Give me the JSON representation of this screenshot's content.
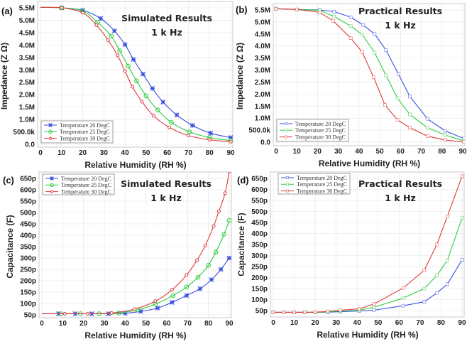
{
  "colors": {
    "t20": "#3a4fe0",
    "t25": "#2ecc40",
    "t30": "#e03a3a",
    "grid": "#e4e4e4"
  },
  "chart_data": [
    {
      "id": "a",
      "type": "line",
      "panel_label": "(a)",
      "annotation": [
        "Simulated Results",
        "1 k Hz"
      ],
      "xlabel": "Relative Humidity (RH %)",
      "ylabel": "Impedance (Z Ω)",
      "xlim": [
        0,
        90
      ],
      "ylim": [
        0,
        5.5
      ],
      "grid": true,
      "legend": "bottom-left",
      "style": "simulated",
      "xticks": [
        0,
        10,
        20,
        30,
        40,
        50,
        60,
        70,
        80,
        90
      ],
      "xtick_labels": [
        "0",
        "10",
        "20",
        "30",
        "40",
        "50",
        "60",
        "70",
        "80",
        "90"
      ],
      "yticks": [
        0,
        0.5,
        1,
        1.5,
        2,
        2.5,
        3,
        3.5,
        4,
        4.5,
        5,
        5.5
      ],
      "ytick_labels": [
        "0.0",
        "500.0k",
        "1.0M",
        "1.5M",
        "2.0M",
        "2.5M",
        "3.0M",
        "3.5M",
        "4.0M",
        "4.5M",
        "5.0M",
        "5.5M"
      ],
      "series": [
        {
          "name": "Temperature 20 DegC",
          "color_key": "t20",
          "marker": "star",
          "x": [
            0,
            10,
            20,
            28.5,
            35,
            40,
            44,
            48.5,
            53,
            58,
            64.5,
            72,
            80.5,
            90
          ],
          "y": [
            5.52,
            5.5,
            5.4,
            5.07,
            4.57,
            4.02,
            3.42,
            2.83,
            2.25,
            1.7,
            1.18,
            0.76,
            0.45,
            0.27
          ]
        },
        {
          "name": "Temperature 25 DegC",
          "color_key": "t25",
          "marker": "circle",
          "x": [
            0,
            10,
            20,
            27,
            33.5,
            37.5,
            41.5,
            45.5,
            50,
            55.5,
            62,
            70.5,
            80,
            90
          ],
          "y": [
            5.52,
            5.5,
            5.37,
            4.92,
            4.36,
            3.77,
            3.15,
            2.55,
            1.95,
            1.38,
            0.88,
            0.5,
            0.27,
            0.15
          ]
        },
        {
          "name": "Temperature 30 DegC",
          "color_key": "t30",
          "marker": "dot",
          "x": [
            0,
            10,
            20,
            26.5,
            32,
            36.5,
            40,
            43.5,
            48,
            53.5,
            61,
            70,
            80,
            90
          ],
          "y": [
            5.52,
            5.5,
            5.3,
            4.8,
            4.2,
            3.58,
            2.95,
            2.32,
            1.72,
            1.15,
            0.68,
            0.35,
            0.18,
            0.1
          ]
        }
      ]
    },
    {
      "id": "b",
      "type": "line",
      "panel_label": "(b)",
      "annotation": [
        "Practical Results",
        "1 k Hz"
      ],
      "xlabel": "Relative Humidity (RH %)",
      "ylabel": "Impedance (Z Ω)",
      "xlim": [
        0,
        90
      ],
      "ylim": [
        0,
        5.5
      ],
      "grid": true,
      "legend": "bottom-left",
      "style": "practical",
      "xticks": [
        0,
        10,
        20,
        30,
        40,
        50,
        60,
        70,
        80,
        90
      ],
      "xtick_labels": [
        "0",
        "10",
        "20",
        "30",
        "40",
        "50",
        "60",
        "70",
        "80",
        "90"
      ],
      "yticks": [
        0,
        0.5,
        1,
        1.5,
        2,
        2.5,
        3,
        3.5,
        4,
        4.5,
        5,
        5.5
      ],
      "ytick_labels": [
        "0.0",
        "500.0k",
        "1.0M",
        "1.5M",
        "2.0M",
        "2.5M",
        "3.0M",
        "3.5M",
        "4.0M",
        "4.5M",
        "5.0M",
        "5.5M"
      ],
      "series": [
        {
          "name": "Temperature 20 DegC",
          "color_key": "t20",
          "marker": "square",
          "x": [
            0,
            10,
            21,
            28,
            36,
            42,
            47.5,
            53,
            59,
            64.5,
            73,
            81.5,
            90.5
          ],
          "y": [
            5.55,
            5.52,
            5.5,
            5.43,
            5.2,
            4.87,
            4.5,
            3.83,
            2.83,
            1.9,
            0.97,
            0.47,
            0.15
          ]
        },
        {
          "name": "Temperature 25 DegC",
          "color_key": "t25",
          "marker": "square",
          "x": [
            0,
            10,
            21,
            28,
            36,
            41.5,
            47.5,
            53,
            58.5,
            64.5,
            73,
            81.5,
            90.5
          ],
          "y": [
            5.55,
            5.52,
            5.48,
            5.23,
            4.83,
            4.48,
            3.73,
            2.78,
            1.83,
            1.15,
            0.6,
            0.3,
            0.05
          ]
        },
        {
          "name": "Temperature 30 DegC",
          "color_key": "t30",
          "marker": "square",
          "x": [
            0,
            10,
            21,
            27.5,
            36,
            41.5,
            47,
            52.5,
            58.5,
            64.5,
            73,
            81.5,
            90.5
          ],
          "y": [
            5.55,
            5.52,
            5.4,
            5.05,
            4.33,
            3.75,
            2.7,
            1.55,
            0.93,
            0.6,
            0.25,
            0.09,
            0.0
          ]
        }
      ]
    },
    {
      "id": "c",
      "type": "line",
      "panel_label": "(c)",
      "annotation": [
        "Simulated Results",
        "1 k Hz"
      ],
      "xlabel": "Relative Humidity (RH %)",
      "ylabel": "Capacitance (F)",
      "xlim": [
        0,
        90
      ],
      "ylim": [
        50,
        650
      ],
      "grid": true,
      "legend": "top-left",
      "style": "simulated",
      "xticks": [
        0,
        10,
        20,
        30,
        40,
        50,
        60,
        70,
        80,
        90
      ],
      "xtick_labels": [
        "0",
        "10",
        "20",
        "30",
        "40",
        "50",
        "60",
        "70",
        "80",
        "90"
      ],
      "yticks": [
        50,
        100,
        150,
        200,
        250,
        300,
        350,
        400,
        450,
        500,
        550,
        600,
        650
      ],
      "ytick_labels": [
        "50p",
        "100p",
        "150p",
        "200p",
        "250p",
        "300p",
        "350p",
        "400p",
        "450p",
        "500p",
        "550p",
        "600p",
        "650p"
      ],
      "series": [
        {
          "name": "Temperature 20 DegC",
          "color_key": "t20",
          "marker": "star",
          "x": [
            0,
            8,
            16,
            24,
            32,
            40,
            47.5,
            55.5,
            62.5,
            69.5,
            76,
            81.5,
            86,
            90
          ],
          "y": [
            55,
            55,
            55,
            55,
            55,
            57,
            65,
            80,
            105,
            135,
            165,
            205,
            250,
            300
          ]
        },
        {
          "name": "Temperature 25 DegC",
          "color_key": "t25",
          "marker": "circle",
          "x": [
            0,
            9,
            18.5,
            27.5,
            37,
            46,
            54.5,
            63,
            69.5,
            75,
            80,
            83.5,
            87.5,
            90
          ],
          "y": [
            55,
            55,
            55,
            55,
            58,
            72,
            97,
            135,
            172,
            215,
            268,
            325,
            405,
            465
          ]
        },
        {
          "name": "Temperature 30 DegC",
          "color_key": "t30",
          "marker": "dot",
          "x": [
            0,
            11,
            22,
            33.5,
            44.5,
            54.5,
            62.5,
            69.5,
            74.5,
            78.5,
            82.5,
            85,
            88,
            90
          ],
          "y": [
            55,
            55,
            55,
            58,
            75,
            110,
            160,
            225,
            290,
            355,
            440,
            505,
            585,
            680
          ]
        }
      ]
    },
    {
      "id": "d",
      "type": "line",
      "panel_label": "(d)",
      "annotation": [
        "Practical Results",
        "1 k Hz"
      ],
      "xlabel": "Relative Humidity (RH %)",
      "ylabel": "Capacitance (F)",
      "xlim": [
        0,
        90
      ],
      "ylim": [
        50,
        650
      ],
      "grid": true,
      "legend": "top-left",
      "style": "practical",
      "xticks": [
        0,
        10,
        20,
        30,
        40,
        50,
        60,
        70,
        80,
        90
      ],
      "xtick_labels": [
        "0",
        "10",
        "20",
        "30",
        "40",
        "50",
        "60",
        "70",
        "80",
        "90"
      ],
      "yticks": [
        50,
        100,
        150,
        200,
        250,
        300,
        350,
        400,
        450,
        500,
        550,
        600,
        650
      ],
      "ytick_labels": [
        "50p",
        "100p",
        "150p",
        "200p",
        "250p",
        "300p",
        "350p",
        "400p",
        "450p",
        "500p",
        "550p",
        "600p",
        "650p"
      ],
      "series": [
        {
          "name": "Temperature 20 DegC",
          "color_key": "t20",
          "marker": "square",
          "x": [
            0,
            5,
            10,
            15,
            20,
            26,
            32,
            41,
            48,
            62,
            72,
            78,
            83,
            90
          ],
          "y": [
            42,
            42,
            42,
            42,
            42,
            43,
            45,
            48,
            52,
            72,
            90,
            130,
            170,
            280
          ]
        },
        {
          "name": "Temperature 25 DegC",
          "color_key": "t25",
          "marker": "square",
          "x": [
            0,
            5,
            10,
            15,
            20,
            26,
            32,
            41,
            48,
            62,
            72,
            78,
            83,
            90
          ],
          "y": [
            42,
            42,
            42,
            42,
            42,
            44,
            48,
            52,
            65,
            107,
            150,
            210,
            278,
            470
          ]
        },
        {
          "name": "Temperature 30 DegC",
          "color_key": "t30",
          "marker": "square",
          "x": [
            0,
            5,
            10,
            15,
            20,
            26,
            32,
            41,
            48,
            62,
            72,
            78,
            83,
            90
          ],
          "y": [
            42,
            42,
            42,
            42,
            43,
            46,
            52,
            58,
            80,
            153,
            233,
            350,
            478,
            660
          ]
        }
      ]
    }
  ]
}
